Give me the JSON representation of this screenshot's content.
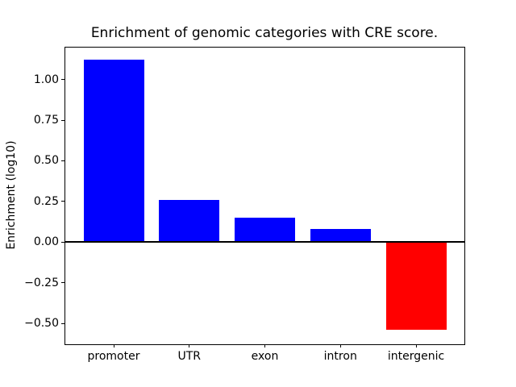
{
  "chart_data": {
    "type": "bar",
    "title": "Enrichment of genomic categories with CRE score.",
    "xlabel": "",
    "ylabel": "Enrichment (log10)",
    "categories": [
      "promoter",
      "UTR",
      "exon",
      "intron",
      "intergenic"
    ],
    "values": [
      1.12,
      0.26,
      0.15,
      0.08,
      -0.54
    ],
    "bar_colors": [
      "#0000ff",
      "#0000ff",
      "#0000ff",
      "#0000ff",
      "#ff0000"
    ],
    "positive_color": "#0000ff",
    "negative_color": "#ff0000",
    "bar_width": 0.8,
    "xlim": [
      -0.64,
      4.64
    ],
    "ylim": [
      -0.627,
      1.196
    ],
    "yticks": [
      1.0,
      0.75,
      0.5,
      0.25,
      0.0,
      -0.25,
      -0.5
    ],
    "ytick_labels": [
      "1.00",
      "0.75",
      "0.50",
      "0.25",
      "0.00",
      "−0.25",
      "−0.50"
    ],
    "zero_line": true,
    "zero_line_width": 2,
    "grid": false,
    "legend": null,
    "axis_color": "#000000",
    "background": "#ffffff"
  }
}
